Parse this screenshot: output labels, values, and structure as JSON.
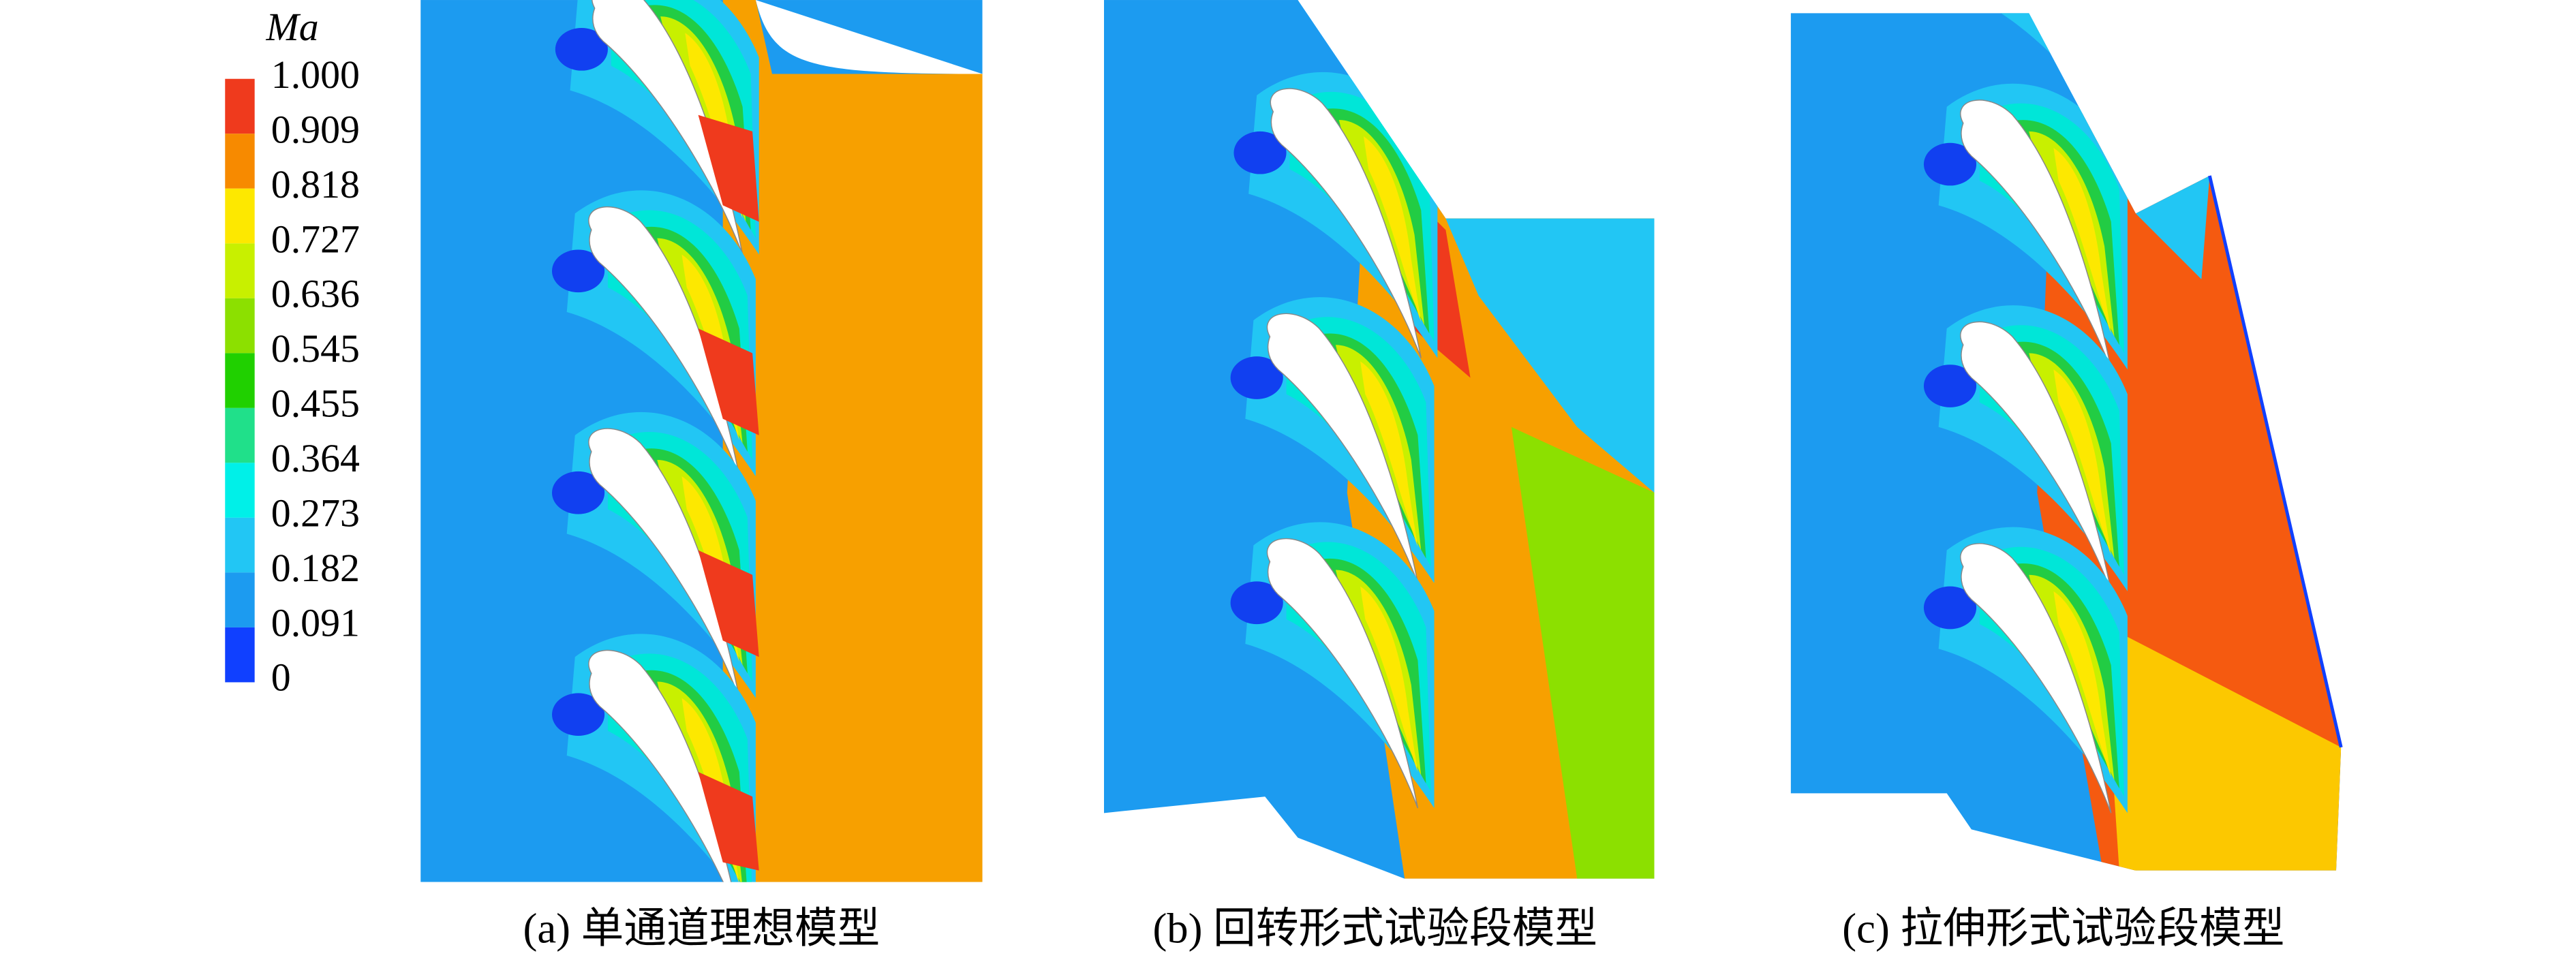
{
  "colorbar": {
    "title": "Ma",
    "ticks": [
      "1.000",
      "0.909",
      "0.818",
      "0.727",
      "0.636",
      "0.545",
      "0.455",
      "0.364",
      "0.273",
      "0.182",
      "0.091",
      "0"
    ]
  },
  "panels": [
    {
      "caption": "(a) 单通道理想模型"
    },
    {
      "caption": "(b) 回转形式试验段模型"
    },
    {
      "caption": "(c) 拉伸形式试验段模型"
    }
  ]
}
